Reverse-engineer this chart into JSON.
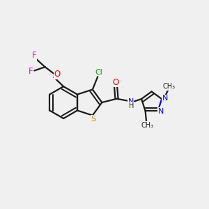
{
  "bg_color": "#f0f0f0",
  "bond_color": "#1a1a1a",
  "S_color": "#b8860b",
  "N_color": "#0000ee",
  "O_color": "#ee0000",
  "F_color": "#ee00ee",
  "Cl_color": "#00aa00",
  "line_width": 1.6,
  "figsize": [
    3.0,
    3.0
  ],
  "dpi": 100,
  "xlim": [
    0,
    10
  ],
  "ylim": [
    0,
    10
  ]
}
